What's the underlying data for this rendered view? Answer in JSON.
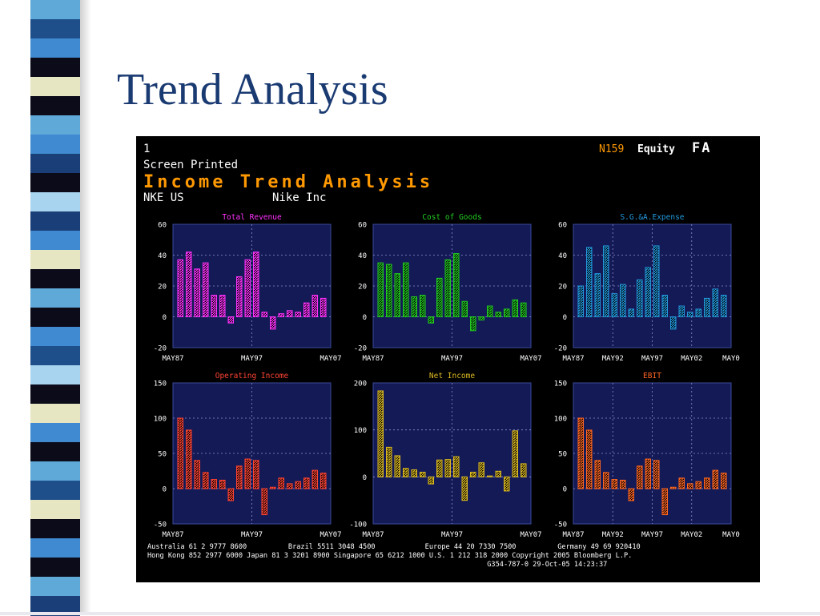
{
  "slide": {
    "title": "Trend Analysis"
  },
  "terminal": {
    "page_number": "1",
    "status_line": "Screen Printed",
    "report_title": "Income Trend Analysis",
    "ticker": "NKE US",
    "company": "Nike Inc",
    "function_code": "N159",
    "market_sector": "Equity",
    "function": "FA",
    "footer_lines": [
      "Australia 61 2 9777 8600          Brazil 5511 3048 4500            Europe 44 20 7330 7500          Germany 49 69 920410",
      "Hong Kong 852 2977 6000 Japan 81 3 3201 8900 Singapore 65 6212 1000 U.S. 1 212 318 2000 Copyright 2005 Bloomberg L.P.",
      "                                                                                  G354-787-0 29-Oct-05 14:23:37"
    ]
  },
  "colors": {
    "slide_title": "#1a3a72",
    "panel_background": "#141a55",
    "axis_text": "#ffffff",
    "report_title": "#ff9900"
  },
  "stripes": [
    "#5ea9d8",
    "#1e4f8a",
    "#3f8ad0",
    "#0b0b1a",
    "#e6e6c2",
    "#0b0b1a",
    "#5ea9d8",
    "#3f8ad0",
    "#1a3f78",
    "#0b0b1a",
    "#a9d4f0",
    "#1a3f78",
    "#3f8ad0",
    "#e6e6c2",
    "#0b0b1a",
    "#5ea9d8",
    "#0b0b1a",
    "#3f8ad0",
    "#1e4f8a",
    "#a9d4f0",
    "#0b0b1a",
    "#e6e6c2",
    "#3f8ad0",
    "#0b0b1a",
    "#5ea9d8",
    "#1e4f8a",
    "#e6e6c2",
    "#0b0b1a",
    "#3f8ad0",
    "#0b0b1a",
    "#5ea9d8",
    "#1a3f78"
  ],
  "chart_data": [
    {
      "type": "bar",
      "title": "Total Revenue",
      "color": "#ff33ff",
      "ylim": [
        -20,
        60
      ],
      "yticks": [
        60,
        40,
        20,
        0,
        -20
      ],
      "xticks": [
        "MAY87",
        "MAY97",
        "MAY07"
      ],
      "values": [
        37,
        42,
        31,
        35,
        14,
        14,
        -4,
        26,
        37,
        42,
        3,
        -8,
        2,
        4,
        3,
        9,
        14,
        12
      ],
      "grid": true
    },
    {
      "type": "bar",
      "title": "Cost of Goods",
      "color": "#22cc22",
      "ylim": [
        -20,
        60
      ],
      "yticks": [
        60,
        40,
        20,
        0,
        -20
      ],
      "xticks": [
        "MAY87",
        "MAY97",
        "MAY07"
      ],
      "values": [
        35,
        34,
        28,
        35,
        13,
        14,
        -4,
        25,
        37,
        41,
        10,
        -9,
        -2,
        7,
        3,
        5,
        11,
        9
      ],
      "grid": true
    },
    {
      "type": "bar",
      "title": "S.G.&A.Expense",
      "color": "#2299dd",
      "ylim": [
        -20,
        60
      ],
      "yticks": [
        60,
        40,
        20,
        0,
        -20
      ],
      "xticks": [
        "MAY87",
        "MAY92",
        "MAY97",
        "MAY02",
        "MAY0"
      ],
      "values": [
        20,
        45,
        28,
        46,
        15,
        21,
        5,
        24,
        32,
        46,
        14,
        -8,
        7,
        3,
        5,
        12,
        18,
        14
      ],
      "grid": true
    },
    {
      "type": "bar",
      "title": "Operating Income",
      "color": "#ff4433",
      "ylim": [
        -50,
        150
      ],
      "yticks": [
        150,
        100,
        50,
        0,
        -50
      ],
      "xticks": [
        "MAY87",
        "MAY97",
        "MAY07"
      ],
      "values": [
        100,
        83,
        40,
        23,
        13,
        12,
        -17,
        32,
        42,
        40,
        -37,
        2,
        15,
        7,
        10,
        15,
        26,
        22
      ],
      "grid": true
    },
    {
      "type": "bar",
      "title": "Net Income",
      "color": "#ddbb22",
      "ylim": [
        -100,
        200
      ],
      "yticks": [
        200,
        100,
        0,
        -100
      ],
      "xticks": [
        "MAY87",
        "MAY97",
        "MAY07"
      ],
      "values": [
        183,
        63,
        45,
        18,
        15,
        10,
        -15,
        36,
        37,
        43,
        -50,
        10,
        30,
        2,
        12,
        -30,
        98,
        28
      ],
      "grid": true
    },
    {
      "type": "bar",
      "title": "EBIT",
      "color": "#ff6622",
      "ylim": [
        -50,
        150
      ],
      "yticks": [
        150,
        100,
        50,
        0,
        -50
      ],
      "xticks": [
        "MAY87",
        "MAY92",
        "MAY97",
        "MAY02",
        "MAY0"
      ],
      "values": [
        100,
        83,
        40,
        23,
        13,
        12,
        -17,
        32,
        42,
        40,
        -37,
        2,
        15,
        7,
        10,
        15,
        26,
        22
      ],
      "grid": true
    }
  ]
}
